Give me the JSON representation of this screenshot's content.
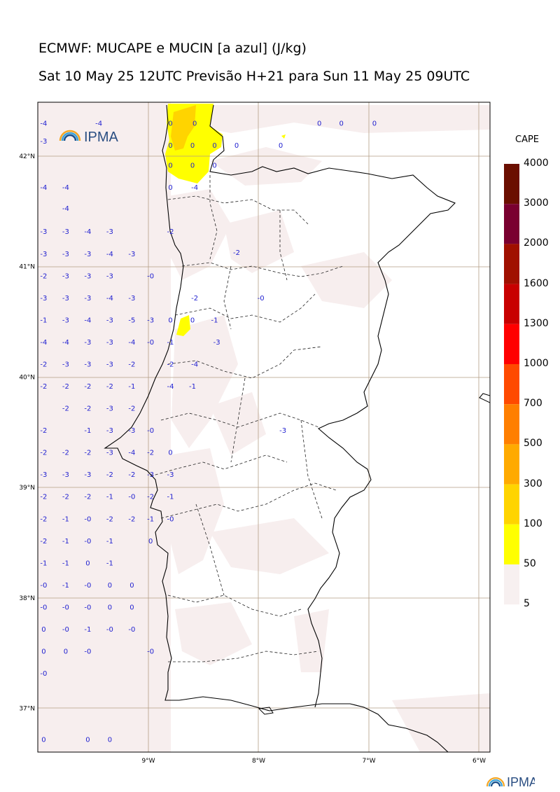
{
  "title_line1": "ECMWF: MUCAPE e MUCIN [a azul] (J/kg)",
  "title_line2": "Sat 10 May 25 12UTC Previsão H+21 para Sun 11 May 25 09UTC",
  "logo_text": "IPMA",
  "colorbar": {
    "title": "CAPE",
    "labels": [
      "4000",
      "3000",
      "2000",
      "1600",
      "1300",
      "1000",
      "700",
      "500",
      "300",
      "100",
      "50",
      "5"
    ],
    "colors": [
      "#6b0f00",
      "#7a0030",
      "#a01000",
      "#c80000",
      "#ff0000",
      "#ff4a00",
      "#ff7f00",
      "#ffaa00",
      "#ffd400",
      "#ffff00",
      "#f7f0f0"
    ]
  },
  "lat_labels": [
    "42°N",
    "41°N",
    "40°N",
    "39°N",
    "38°N",
    "37°N"
  ],
  "lon_labels": [
    "9°W",
    "8°W",
    "7°W",
    "6°W"
  ],
  "cin_values": [
    {
      "lon": -9.95,
      "lat": 42.3,
      "v": "-4"
    },
    {
      "lon": -9.45,
      "lat": 42.3,
      "v": "-4"
    },
    {
      "lon": -8.8,
      "lat": 42.3,
      "v": "0"
    },
    {
      "lon": -8.58,
      "lat": 42.3,
      "v": "0"
    },
    {
      "lon": -7.45,
      "lat": 42.3,
      "v": "0"
    },
    {
      "lon": -7.25,
      "lat": 42.3,
      "v": "0"
    },
    {
      "lon": -6.95,
      "lat": 42.3,
      "v": "0"
    },
    {
      "lon": -9.95,
      "lat": 42.14,
      "v": "-3"
    },
    {
      "lon": -8.8,
      "lat": 42.1,
      "v": "0"
    },
    {
      "lon": -8.6,
      "lat": 42.1,
      "v": "0"
    },
    {
      "lon": -8.4,
      "lat": 42.1,
      "v": "0"
    },
    {
      "lon": -8.2,
      "lat": 42.1,
      "v": "0"
    },
    {
      "lon": -7.8,
      "lat": 42.1,
      "v": "0"
    },
    {
      "lon": -8.8,
      "lat": 41.92,
      "v": "0"
    },
    {
      "lon": -8.6,
      "lat": 41.92,
      "v": "0"
    },
    {
      "lon": -8.4,
      "lat": 41.92,
      "v": "0"
    },
    {
      "lon": -9.95,
      "lat": 41.72,
      "v": "-4"
    },
    {
      "lon": -9.75,
      "lat": 41.72,
      "v": "-4"
    },
    {
      "lon": -8.8,
      "lat": 41.72,
      "v": "0"
    },
    {
      "lon": -8.58,
      "lat": 41.72,
      "v": "-4"
    },
    {
      "lon": -9.75,
      "lat": 41.53,
      "v": "-4"
    },
    {
      "lon": -9.95,
      "lat": 41.32,
      "v": "-3"
    },
    {
      "lon": -9.75,
      "lat": 41.32,
      "v": "-3"
    },
    {
      "lon": -9.55,
      "lat": 41.32,
      "v": "-4"
    },
    {
      "lon": -9.35,
      "lat": 41.32,
      "v": "-3"
    },
    {
      "lon": -8.8,
      "lat": 41.32,
      "v": "-2"
    },
    {
      "lon": -9.95,
      "lat": 41.12,
      "v": "-3"
    },
    {
      "lon": -9.75,
      "lat": 41.12,
      "v": "-3"
    },
    {
      "lon": -9.55,
      "lat": 41.12,
      "v": "-3"
    },
    {
      "lon": -9.35,
      "lat": 41.12,
      "v": "-4"
    },
    {
      "lon": -9.15,
      "lat": 41.12,
      "v": "-3"
    },
    {
      "lon": -8.2,
      "lat": 41.13,
      "v": "-2"
    },
    {
      "lon": -9.95,
      "lat": 40.92,
      "v": "-2"
    },
    {
      "lon": -9.75,
      "lat": 40.92,
      "v": "-3"
    },
    {
      "lon": -9.55,
      "lat": 40.92,
      "v": "-3"
    },
    {
      "lon": -9.35,
      "lat": 40.92,
      "v": "-3"
    },
    {
      "lon": -8.98,
      "lat": 40.92,
      "v": "-0"
    },
    {
      "lon": -9.95,
      "lat": 40.72,
      "v": "-3"
    },
    {
      "lon": -9.75,
      "lat": 40.72,
      "v": "-3"
    },
    {
      "lon": -9.55,
      "lat": 40.72,
      "v": "-3"
    },
    {
      "lon": -9.35,
      "lat": 40.72,
      "v": "-4"
    },
    {
      "lon": -9.15,
      "lat": 40.72,
      "v": "-3"
    },
    {
      "lon": -8.58,
      "lat": 40.72,
      "v": "-2"
    },
    {
      "lon": -7.98,
      "lat": 40.72,
      "v": "-0"
    },
    {
      "lon": -9.95,
      "lat": 40.52,
      "v": "-1"
    },
    {
      "lon": -9.75,
      "lat": 40.52,
      "v": "-3"
    },
    {
      "lon": -9.55,
      "lat": 40.52,
      "v": "-4"
    },
    {
      "lon": -9.35,
      "lat": 40.52,
      "v": "-3"
    },
    {
      "lon": -9.15,
      "lat": 40.52,
      "v": "-5"
    },
    {
      "lon": -8.98,
      "lat": 40.52,
      "v": "-3"
    },
    {
      "lon": -8.8,
      "lat": 40.52,
      "v": "0"
    },
    {
      "lon": -8.6,
      "lat": 40.52,
      "v": "0"
    },
    {
      "lon": -8.4,
      "lat": 40.52,
      "v": "-1"
    },
    {
      "lon": -9.95,
      "lat": 40.32,
      "v": "-4"
    },
    {
      "lon": -9.75,
      "lat": 40.32,
      "v": "-4"
    },
    {
      "lon": -9.55,
      "lat": 40.32,
      "v": "-3"
    },
    {
      "lon": -9.35,
      "lat": 40.32,
      "v": "-3"
    },
    {
      "lon": -9.15,
      "lat": 40.32,
      "v": "-4"
    },
    {
      "lon": -8.98,
      "lat": 40.32,
      "v": "-0"
    },
    {
      "lon": -8.8,
      "lat": 40.32,
      "v": "-1"
    },
    {
      "lon": -8.38,
      "lat": 40.32,
      "v": "-3"
    },
    {
      "lon": -9.95,
      "lat": 40.12,
      "v": "-2"
    },
    {
      "lon": -9.75,
      "lat": 40.12,
      "v": "-3"
    },
    {
      "lon": -9.55,
      "lat": 40.12,
      "v": "-3"
    },
    {
      "lon": -9.35,
      "lat": 40.12,
      "v": "-3"
    },
    {
      "lon": -9.15,
      "lat": 40.12,
      "v": "-2"
    },
    {
      "lon": -8.8,
      "lat": 40.12,
      "v": "-2"
    },
    {
      "lon": -8.58,
      "lat": 40.12,
      "v": "-4"
    },
    {
      "lon": -9.95,
      "lat": 39.92,
      "v": "-2"
    },
    {
      "lon": -9.75,
      "lat": 39.92,
      "v": "-2"
    },
    {
      "lon": -9.55,
      "lat": 39.92,
      "v": "-2"
    },
    {
      "lon": -9.35,
      "lat": 39.92,
      "v": "-2"
    },
    {
      "lon": -9.15,
      "lat": 39.92,
      "v": "-1"
    },
    {
      "lon": -8.8,
      "lat": 39.92,
      "v": "-4"
    },
    {
      "lon": -8.6,
      "lat": 39.92,
      "v": "-1"
    },
    {
      "lon": -9.75,
      "lat": 39.72,
      "v": "-2"
    },
    {
      "lon": -9.55,
      "lat": 39.72,
      "v": "-2"
    },
    {
      "lon": -9.35,
      "lat": 39.72,
      "v": "-3"
    },
    {
      "lon": -9.15,
      "lat": 39.72,
      "v": "-2"
    },
    {
      "lon": -9.95,
      "lat": 39.52,
      "v": "-2"
    },
    {
      "lon": -9.55,
      "lat": 39.52,
      "v": "-1"
    },
    {
      "lon": -9.35,
      "lat": 39.52,
      "v": "-3"
    },
    {
      "lon": -9.15,
      "lat": 39.52,
      "v": "-3"
    },
    {
      "lon": -8.98,
      "lat": 39.52,
      "v": "-0"
    },
    {
      "lon": -7.78,
      "lat": 39.52,
      "v": "-3"
    },
    {
      "lon": -9.95,
      "lat": 39.32,
      "v": "-2"
    },
    {
      "lon": -9.75,
      "lat": 39.32,
      "v": "-2"
    },
    {
      "lon": -9.55,
      "lat": 39.32,
      "v": "-2"
    },
    {
      "lon": -9.35,
      "lat": 39.32,
      "v": "-3"
    },
    {
      "lon": -9.15,
      "lat": 39.32,
      "v": "-4"
    },
    {
      "lon": -8.98,
      "lat": 39.32,
      "v": "-2"
    },
    {
      "lon": -8.8,
      "lat": 39.32,
      "v": "0"
    },
    {
      "lon": -9.95,
      "lat": 39.12,
      "v": "-3"
    },
    {
      "lon": -9.75,
      "lat": 39.12,
      "v": "-3"
    },
    {
      "lon": -9.55,
      "lat": 39.12,
      "v": "-3"
    },
    {
      "lon": -9.35,
      "lat": 39.12,
      "v": "-2"
    },
    {
      "lon": -9.15,
      "lat": 39.12,
      "v": "-2"
    },
    {
      "lon": -8.98,
      "lat": 39.12,
      "v": "-3"
    },
    {
      "lon": -8.8,
      "lat": 39.12,
      "v": "-3"
    },
    {
      "lon": -9.95,
      "lat": 38.92,
      "v": "-2"
    },
    {
      "lon": -9.75,
      "lat": 38.92,
      "v": "-2"
    },
    {
      "lon": -9.55,
      "lat": 38.92,
      "v": "-2"
    },
    {
      "lon": -9.35,
      "lat": 38.92,
      "v": "-1"
    },
    {
      "lon": -9.15,
      "lat": 38.92,
      "v": "-0"
    },
    {
      "lon": -8.98,
      "lat": 38.92,
      "v": "-2"
    },
    {
      "lon": -8.8,
      "lat": 38.92,
      "v": "-1"
    },
    {
      "lon": -9.95,
      "lat": 38.72,
      "v": "-2"
    },
    {
      "lon": -9.75,
      "lat": 38.72,
      "v": "-1"
    },
    {
      "lon": -9.55,
      "lat": 38.72,
      "v": "-0"
    },
    {
      "lon": -9.35,
      "lat": 38.72,
      "v": "-2"
    },
    {
      "lon": -9.15,
      "lat": 38.72,
      "v": "-2"
    },
    {
      "lon": -8.98,
      "lat": 38.72,
      "v": "-1"
    },
    {
      "lon": -8.8,
      "lat": 38.72,
      "v": "-0"
    },
    {
      "lon": -9.95,
      "lat": 38.52,
      "v": "-2"
    },
    {
      "lon": -9.75,
      "lat": 38.52,
      "v": "-1"
    },
    {
      "lon": -9.55,
      "lat": 38.52,
      "v": "-0"
    },
    {
      "lon": -9.35,
      "lat": 38.52,
      "v": "-1"
    },
    {
      "lon": -8.98,
      "lat": 38.52,
      "v": "0"
    },
    {
      "lon": -9.95,
      "lat": 38.32,
      "v": "-1"
    },
    {
      "lon": -9.75,
      "lat": 38.32,
      "v": "-1"
    },
    {
      "lon": -9.55,
      "lat": 38.32,
      "v": "0"
    },
    {
      "lon": -9.35,
      "lat": 38.32,
      "v": "-1"
    },
    {
      "lon": -9.95,
      "lat": 38.12,
      "v": "-0"
    },
    {
      "lon": -9.75,
      "lat": 38.12,
      "v": "-1"
    },
    {
      "lon": -9.55,
      "lat": 38.12,
      "v": "-0"
    },
    {
      "lon": -9.35,
      "lat": 38.12,
      "v": "0"
    },
    {
      "lon": -9.15,
      "lat": 38.12,
      "v": "0"
    },
    {
      "lon": -9.95,
      "lat": 37.92,
      "v": "-0"
    },
    {
      "lon": -9.75,
      "lat": 37.92,
      "v": "-0"
    },
    {
      "lon": -9.55,
      "lat": 37.92,
      "v": "-0"
    },
    {
      "lon": -9.35,
      "lat": 37.92,
      "v": "0"
    },
    {
      "lon": -9.15,
      "lat": 37.92,
      "v": "0"
    },
    {
      "lon": -9.95,
      "lat": 37.72,
      "v": "0"
    },
    {
      "lon": -9.75,
      "lat": 37.72,
      "v": "-0"
    },
    {
      "lon": -9.55,
      "lat": 37.72,
      "v": "-1"
    },
    {
      "lon": -9.35,
      "lat": 37.72,
      "v": "-0"
    },
    {
      "lon": -9.15,
      "lat": 37.72,
      "v": "-0"
    },
    {
      "lon": -9.95,
      "lat": 37.52,
      "v": "0"
    },
    {
      "lon": -9.75,
      "lat": 37.52,
      "v": "0"
    },
    {
      "lon": -9.55,
      "lat": 37.52,
      "v": "-0"
    },
    {
      "lon": -8.98,
      "lat": 37.52,
      "v": "-0"
    },
    {
      "lon": -9.95,
      "lat": 37.32,
      "v": "-0"
    },
    {
      "lon": -9.95,
      "lat": 36.72,
      "v": "0"
    },
    {
      "lon": -9.55,
      "lat": 36.72,
      "v": "0"
    },
    {
      "lon": -9.35,
      "lat": 36.72,
      "v": "0"
    }
  ]
}
